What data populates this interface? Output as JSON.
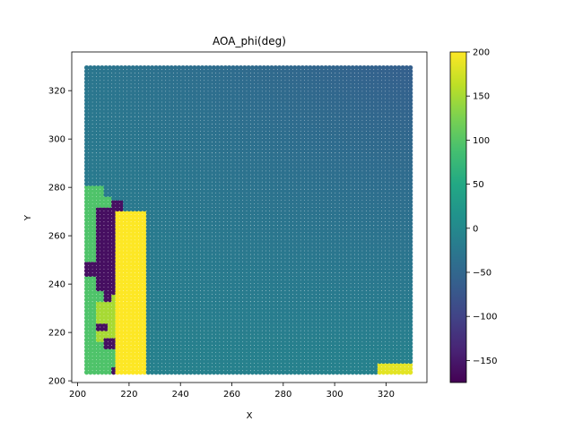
{
  "chart_data": {
    "type": "heatmap",
    "title": "AOA_phi(deg)",
    "xlabel": "X",
    "ylabel": "Y",
    "xlim": [
      197.7,
      335.9
    ],
    "ylim": [
      199.3,
      336.0
    ],
    "xticks": [
      200,
      220,
      240,
      260,
      280,
      300,
      320
    ],
    "yticks": [
      200,
      220,
      240,
      260,
      280,
      300,
      320
    ],
    "colorbar": {
      "colormap": "viridis",
      "range": [
        -175,
        200
      ],
      "ticks": [
        200,
        150,
        100,
        50,
        0,
        -50,
        -100,
        -150
      ],
      "tick_labels": [
        "200",
        "150",
        "100",
        "50",
        "0",
        "−50",
        "−100",
        "−150"
      ]
    },
    "grid": false,
    "marker": "filled-circle",
    "domain_extent": {
      "x": [
        203.5,
        330.5
      ],
      "y": [
        203.5,
        330.5
      ]
    },
    "background_field": {
      "description_values": {
        "bottom_left": -12,
        "bottom_right": -10,
        "top_left": -28,
        "top_right": -62
      }
    },
    "regions": [
      {
        "value": 95,
        "x": [
          203.5,
          210
        ],
        "y": [
          203.5,
          280
        ]
      },
      {
        "value": 95,
        "x": [
          210,
          213.5
        ],
        "y": [
          203.5,
          276
        ]
      },
      {
        "value": 95,
        "x": [
          213.5,
          216
        ],
        "y": [
          203.5,
          272
        ]
      },
      {
        "value": -160,
        "x": [
          207,
          214
        ],
        "y": [
          238,
          271
        ]
      },
      {
        "value": -160,
        "x": [
          214,
          217
        ],
        "y": [
          266,
          275
        ]
      },
      {
        "value": -160,
        "x": [
          203.5,
          210
        ],
        "y": [
          244,
          249
        ]
      },
      {
        "value": -160,
        "x": [
          210,
          214
        ],
        "y": [
          229,
          238
        ]
      },
      {
        "value": 150,
        "x": [
          207,
          213
        ],
        "y": [
          217,
          233
        ]
      },
      {
        "value": 150,
        "x": [
          213,
          216
        ],
        "y": [
          217,
          236
        ]
      },
      {
        "value": -160,
        "x": [
          208,
          212
        ],
        "y": [
          221,
          224
        ]
      },
      {
        "value": -160,
        "x": [
          211,
          215
        ],
        "y": [
          213,
          217
        ]
      },
      {
        "value": -160,
        "x": [
          213,
          215
        ],
        "y": [
          203.5,
          206
        ]
      },
      {
        "value": 200,
        "x": [
          215.5,
          226.5
        ],
        "y": [
          203.5,
          270
        ]
      },
      {
        "value": 185,
        "x": [
          317.5,
          330.5
        ],
        "y": [
          203.5,
          206.5
        ]
      }
    ]
  }
}
